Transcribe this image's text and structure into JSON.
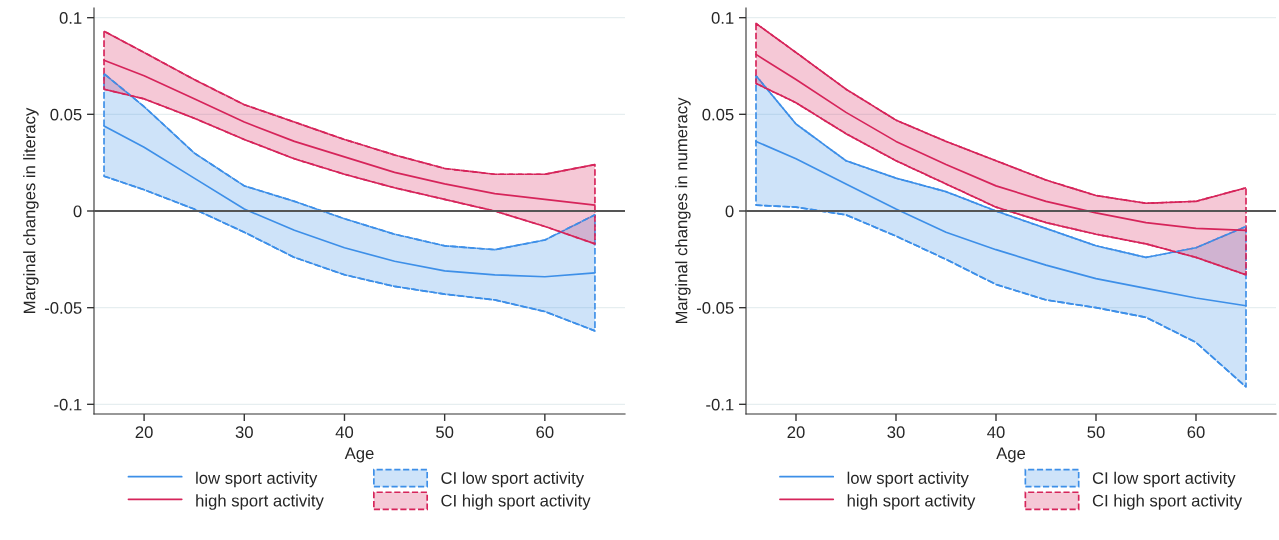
{
  "chart_data": [
    {
      "type": "line",
      "xlabel": "Age",
      "ylabel": "Marginal changes in literacy",
      "x": [
        16,
        20,
        25,
        30,
        35,
        40,
        45,
        50,
        55,
        60,
        65
      ],
      "xlim": [
        15,
        68
      ],
      "xticks": [
        20,
        30,
        40,
        50,
        60
      ],
      "ylim": [
        -0.105,
        0.105
      ],
      "yticks": [
        -0.1,
        -0.05,
        0,
        0.05,
        0.1
      ],
      "grid": "y",
      "legend": "bottom",
      "marker": "none",
      "ref_lines": [
        {
          "axis": "y",
          "value": 0,
          "color": "#555555"
        }
      ],
      "series": [
        {
          "type": "line",
          "name": "low sport activity",
          "color": "#3d8fe8",
          "line_style": "solid",
          "values": [
            0.044,
            0.033,
            0.017,
            0.001,
            -0.01,
            -0.019,
            -0.026,
            -0.031,
            -0.033,
            -0.034,
            -0.032
          ],
          "upper": [
            0.071,
            0.054,
            0.03,
            0.013,
            0.005,
            -0.004,
            -0.012,
            -0.018,
            -0.02,
            -0.015,
            -0.002
          ],
          "lower": [
            0.018,
            0.011,
            0.001,
            -0.011,
            -0.024,
            -0.033,
            -0.039,
            -0.043,
            -0.046,
            -0.052,
            -0.062
          ]
        },
        {
          "type": "line",
          "name": "CI low sport activity",
          "color": "#3d8fe8",
          "line_style": "dashed",
          "values": [
            0.071,
            0.054,
            0.03,
            0.013,
            0.005,
            -0.004,
            -0.012,
            -0.018,
            -0.02,
            -0.015,
            -0.002
          ]
        },
        {
          "type": "line",
          "color": "#3d8fe8",
          "line_style": "dashed",
          "values": [
            0.018,
            0.011,
            0.001,
            -0.011,
            -0.024,
            -0.033,
            -0.039,
            -0.043,
            -0.046,
            -0.052,
            -0.062
          ]
        },
        {
          "type": "line",
          "name": "high sport activity",
          "color": "#d6245a",
          "line_style": "solid",
          "values": [
            0.078,
            0.07,
            0.058,
            0.046,
            0.036,
            0.028,
            0.02,
            0.014,
            0.009,
            0.006,
            0.003
          ],
          "upper": [
            0.093,
            0.082,
            0.068,
            0.055,
            0.046,
            0.037,
            0.029,
            0.022,
            0.019,
            0.019,
            0.024
          ],
          "lower": [
            0.063,
            0.058,
            0.048,
            0.037,
            0.027,
            0.019,
            0.012,
            0.006,
            0.0,
            -0.008,
            -0.017
          ]
        },
        {
          "type": "line",
          "name": "CI high sport activity",
          "color": "#d6245a",
          "line_style": "dashed",
          "values": [
            0.093,
            0.082,
            0.068,
            0.055,
            0.046,
            0.037,
            0.029,
            0.022,
            0.019,
            0.019,
            0.024
          ]
        },
        {
          "type": "line",
          "color": "#d6245a",
          "line_style": "dashed",
          "values": [
            0.063,
            0.058,
            0.048,
            0.037,
            0.027,
            0.019,
            0.012,
            0.006,
            0.0,
            -0.008,
            -0.017
          ]
        }
      ]
    },
    {
      "type": "line",
      "xlabel": "Age",
      "ylabel": "Marginal changes in numeracy",
      "x": [
        16,
        20,
        25,
        30,
        35,
        40,
        45,
        50,
        55,
        60,
        65
      ],
      "xlim": [
        15,
        68
      ],
      "xticks": [
        20,
        30,
        40,
        50,
        60
      ],
      "ylim": [
        -0.105,
        0.105
      ],
      "yticks": [
        -0.1,
        -0.05,
        0,
        0.05,
        0.1
      ],
      "grid": "y",
      "legend": "bottom",
      "marker": "none",
      "ref_lines": [
        {
          "axis": "y",
          "value": 0,
          "color": "#555555"
        }
      ],
      "series": [
        {
          "type": "line",
          "name": "low sport activity",
          "color": "#3d8fe8",
          "line_style": "solid",
          "values": [
            0.036,
            0.027,
            0.014,
            0.001,
            -0.011,
            -0.02,
            -0.028,
            -0.035,
            -0.04,
            -0.045,
            -0.049
          ],
          "upper": [
            0.07,
            0.045,
            0.026,
            0.017,
            0.01,
            0.0,
            -0.009,
            -0.018,
            -0.024,
            -0.019,
            -0.008
          ],
          "lower": [
            0.003,
            0.002,
            -0.002,
            -0.013,
            -0.025,
            -0.038,
            -0.046,
            -0.05,
            -0.055,
            -0.068,
            -0.091
          ]
        },
        {
          "type": "line",
          "name": "CI low sport activity",
          "color": "#3d8fe8",
          "line_style": "dashed",
          "values": [
            0.07,
            0.045,
            0.026,
            0.017,
            0.01,
            0.0,
            -0.009,
            -0.018,
            -0.024,
            -0.019,
            -0.008
          ]
        },
        {
          "type": "line",
          "color": "#3d8fe8",
          "line_style": "dashed",
          "values": [
            0.003,
            0.002,
            -0.002,
            -0.013,
            -0.025,
            -0.038,
            -0.046,
            -0.05,
            -0.055,
            -0.068,
            -0.091
          ]
        },
        {
          "type": "line",
          "name": "high sport activity",
          "color": "#d6245a",
          "line_style": "solid",
          "values": [
            0.081,
            0.068,
            0.051,
            0.036,
            0.024,
            0.013,
            0.005,
            -0.001,
            -0.006,
            -0.009,
            -0.01
          ],
          "upper": [
            0.097,
            0.082,
            0.063,
            0.047,
            0.036,
            0.026,
            0.016,
            0.008,
            0.004,
            0.005,
            0.012
          ],
          "lower": [
            0.066,
            0.056,
            0.04,
            0.026,
            0.014,
            0.002,
            -0.006,
            -0.012,
            -0.017,
            -0.024,
            -0.033
          ]
        },
        {
          "type": "line",
          "name": "CI high sport activity",
          "color": "#d6245a",
          "line_style": "dashed",
          "values": [
            0.097,
            0.082,
            0.063,
            0.047,
            0.036,
            0.026,
            0.016,
            0.008,
            0.004,
            0.005,
            0.012
          ]
        },
        {
          "type": "line",
          "color": "#d6245a",
          "line_style": "dashed",
          "values": [
            0.066,
            0.056,
            0.04,
            0.026,
            0.014,
            0.002,
            -0.006,
            -0.012,
            -0.017,
            -0.024,
            -0.033
          ]
        }
      ]
    }
  ]
}
